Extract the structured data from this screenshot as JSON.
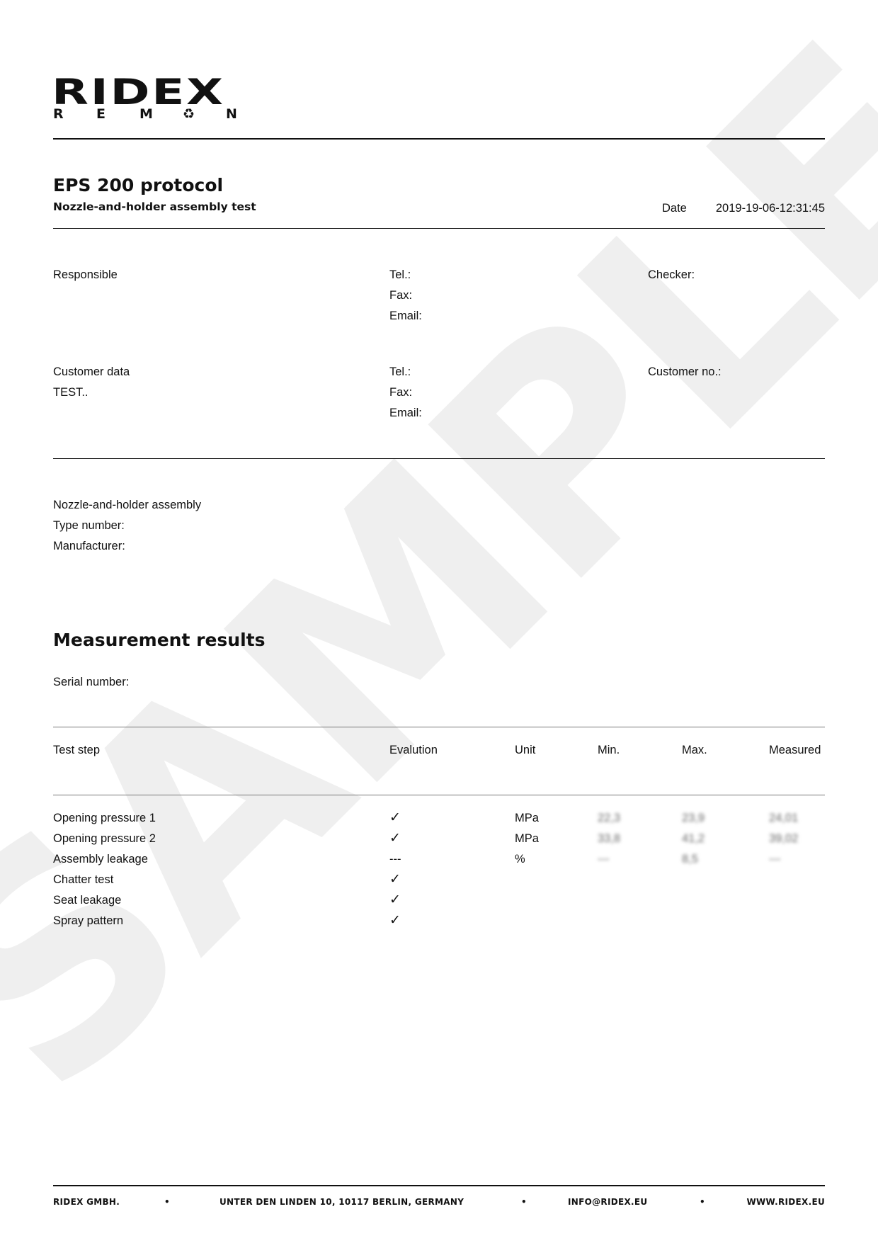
{
  "watermark": "SAMPLE",
  "logo": {
    "brand": "RIDEX",
    "sub": [
      "R",
      "E",
      "M",
      "♻",
      "N"
    ]
  },
  "header": {
    "title": "EPS 200 protocol",
    "subtitle": "Nozzle-and-holder assembly test",
    "date_label": "Date",
    "date_value": "2019-19-06-12:31:45"
  },
  "responsible": {
    "label": "Responsible",
    "tel": "Tel.:",
    "fax": "Fax:",
    "email": "Email:",
    "checker": "Checker:"
  },
  "customer": {
    "label": "Customer data",
    "name": "TEST..",
    "tel": "Tel.:",
    "fax": "Fax:",
    "email": "Email:",
    "customer_no": "Customer no.:"
  },
  "assembly": {
    "label": "Nozzle-and-holder assembly",
    "type": "Type number:",
    "manufacturer": "Manufacturer:"
  },
  "measurement": {
    "title": "Measurement results",
    "serial": "Serial number:"
  },
  "table": {
    "headers": [
      "Test step",
      "Evalution",
      "Unit",
      "Min.",
      "Max.",
      "Measured"
    ],
    "rows": [
      [
        "Opening pressure 1",
        "✓",
        "MPa",
        "22,3",
        "23,9",
        "24,01"
      ],
      [
        "Opening pressure 2",
        "✓",
        "MPa",
        "33,8",
        "41,2",
        "39,02"
      ],
      [
        "Assembly leakage",
        "---",
        "%",
        "---",
        "8,5",
        "---"
      ],
      [
        "Chatter test",
        "✓",
        "",
        "",
        "",
        ""
      ],
      [
        "Seat leakage",
        "✓",
        "",
        "",
        "",
        ""
      ],
      [
        "Spray pattern",
        "✓",
        "",
        "",
        "",
        ""
      ]
    ]
  },
  "footer": {
    "company": "RIDEX GMBH.",
    "address": "UNTER DEN LINDEN 10, 10117 BERLIN, GERMANY",
    "email": "INFO@RIDEX.EU",
    "web": "WWW.RIDEX.EU",
    "bullet": "•"
  }
}
